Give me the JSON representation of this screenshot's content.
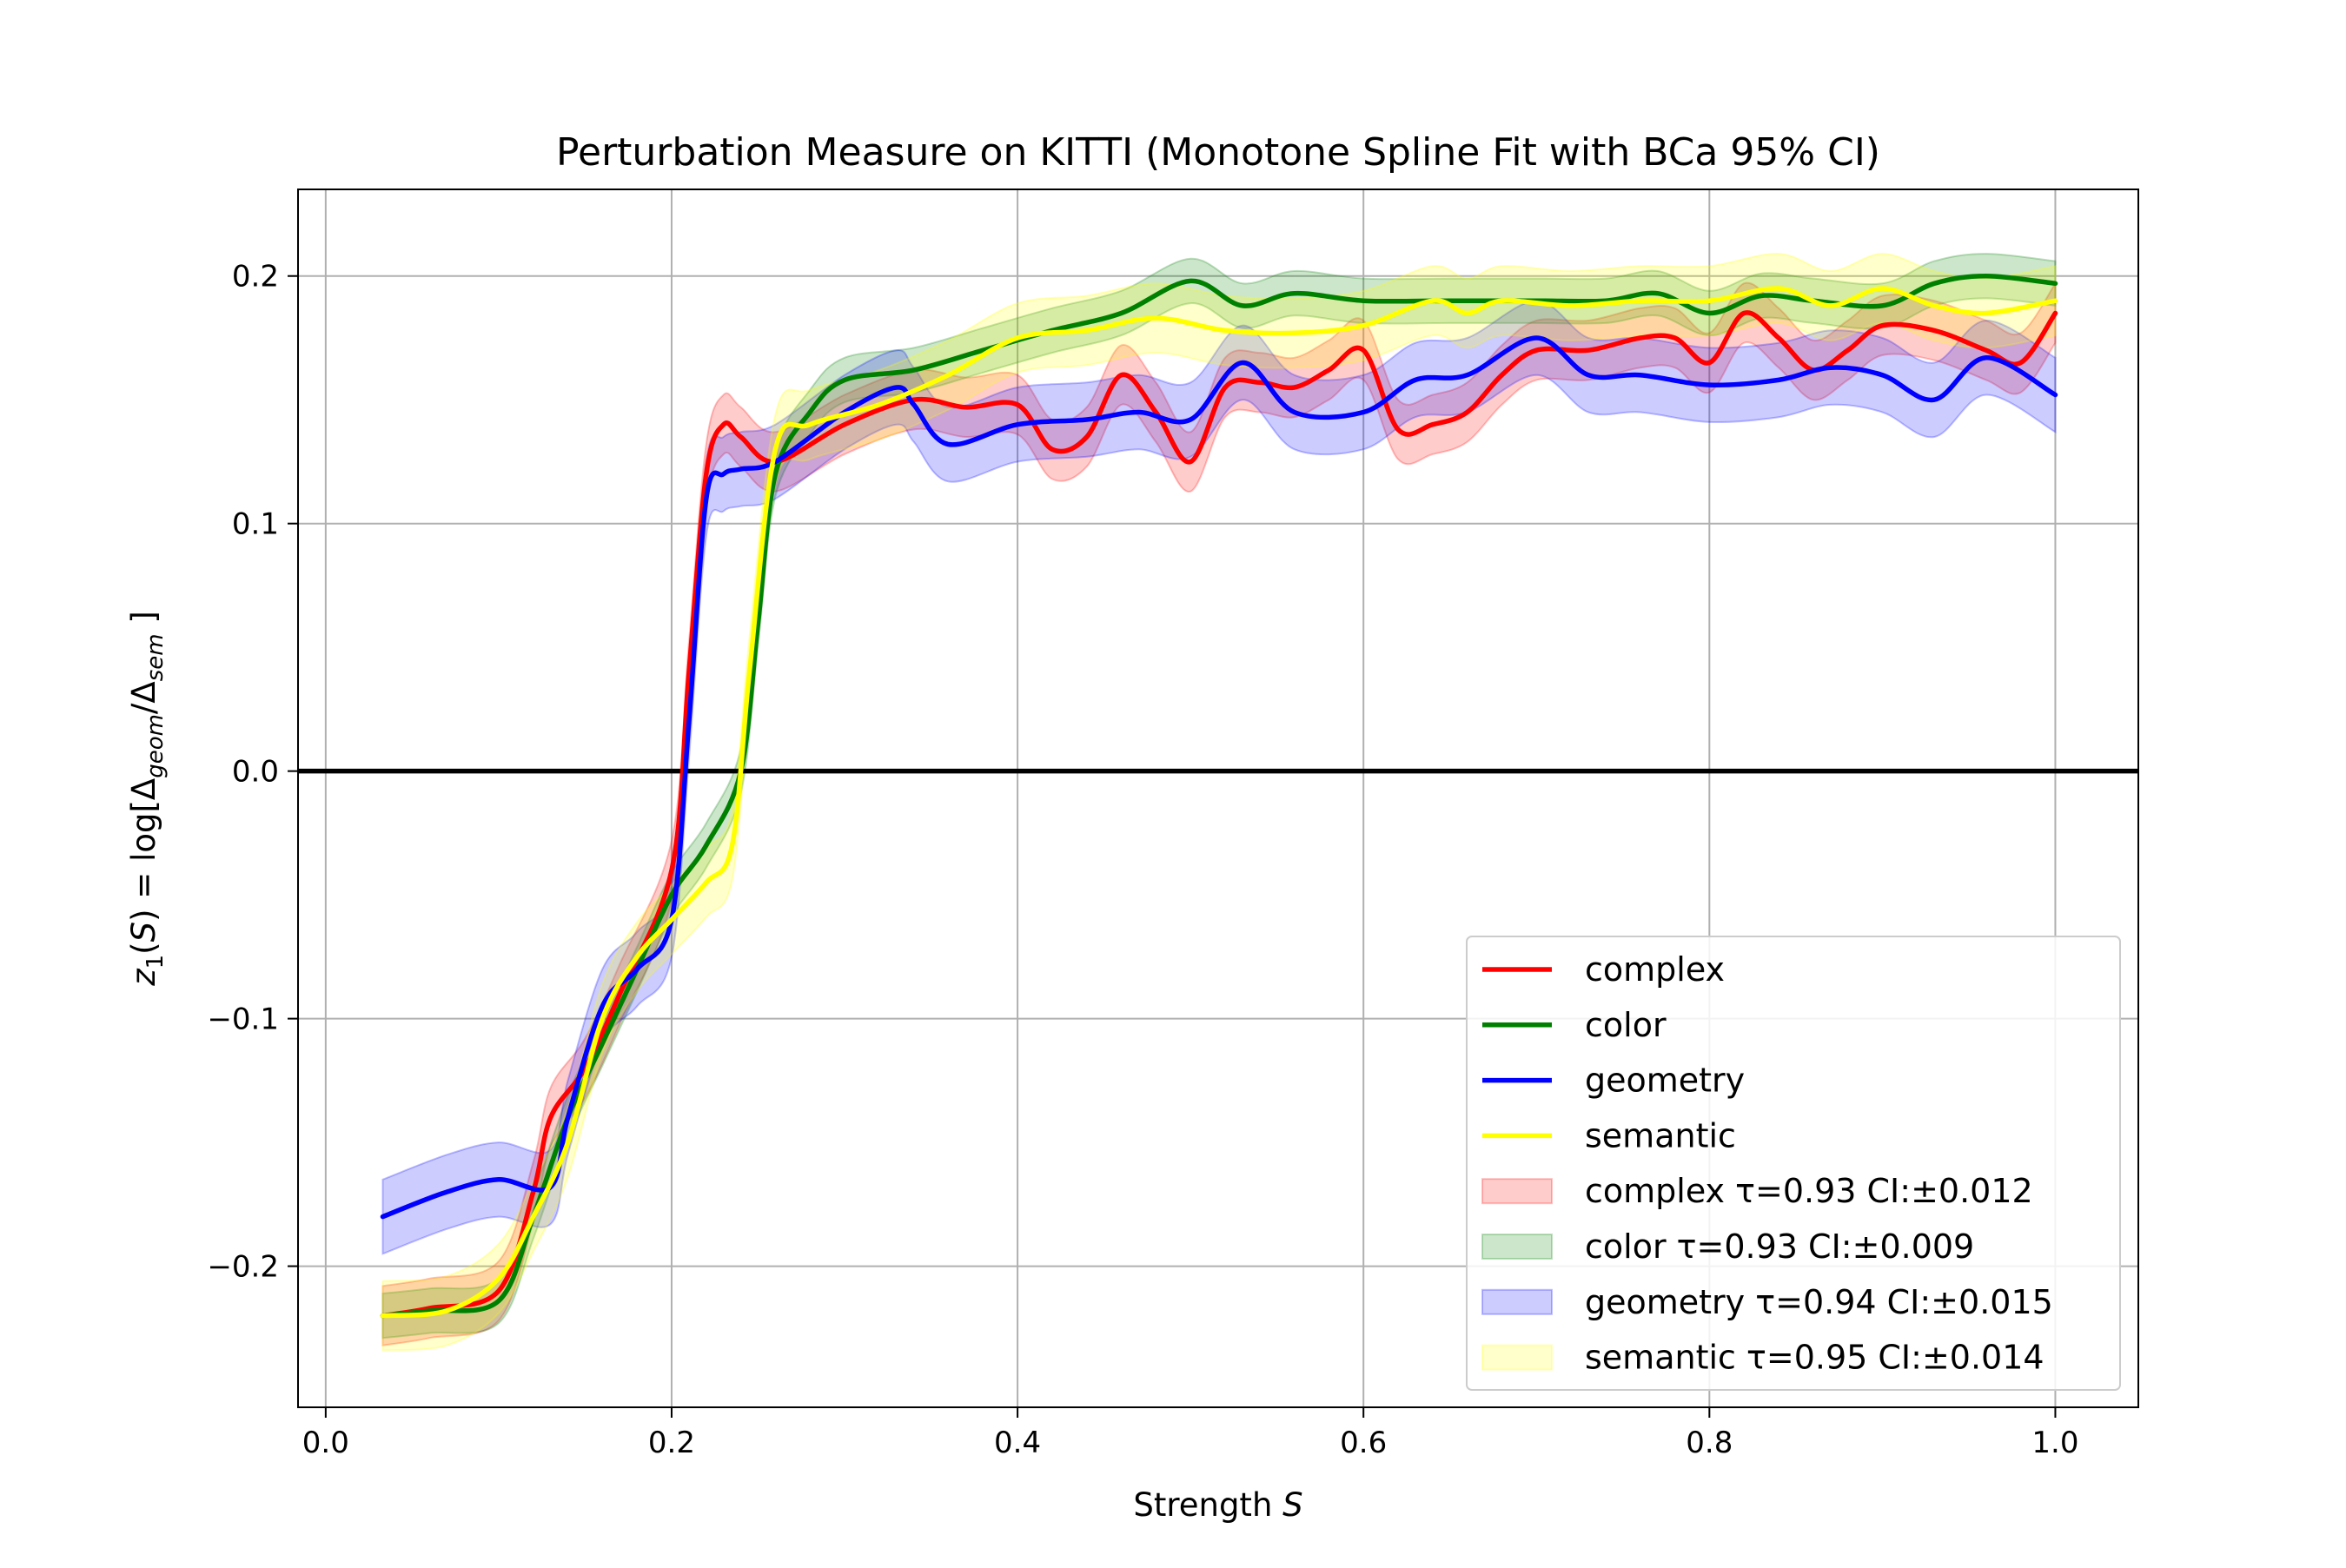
{
  "chart_data": {
    "type": "line",
    "title": "Perturbation Measure on KITTI (Monotone Spline Fit with BCa 95% CI)",
    "xlabel": "Strength S",
    "ylabel": "z1(S) = log[Δgeom/Δsem]",
    "xlim": [
      -0.016,
      1.048
    ],
    "ylim": [
      -0.257,
      0.235
    ],
    "xticks": [
      0.0,
      0.2,
      0.4,
      0.6,
      0.8,
      1.0
    ],
    "xtick_labels": [
      "0.0",
      "0.2",
      "0.4",
      "0.6",
      "0.8",
      "1.0"
    ],
    "yticks": [
      -0.2,
      -0.1,
      0.0,
      0.1,
      0.2
    ],
    "ytick_labels": [
      "−0.2",
      "−0.1",
      "0.0",
      "0.1",
      "0.2"
    ],
    "grid": true,
    "reference_line_y": 0.0,
    "legend_position": "lower right",
    "series": [
      {
        "name": "complex",
        "color": "#ff0000",
        "band_label": "complex τ=0.93 CI:±0.012",
        "ci": 0.012,
        "x": [
          0.033,
          0.06,
          0.1,
          0.12,
          0.13,
          0.15,
          0.17,
          0.2,
          0.21,
          0.22,
          0.23,
          0.24,
          0.26,
          0.3,
          0.34,
          0.37,
          0.4,
          0.42,
          0.44,
          0.46,
          0.48,
          0.5,
          0.52,
          0.54,
          0.56,
          0.58,
          0.6,
          0.62,
          0.64,
          0.66,
          0.68,
          0.7,
          0.73,
          0.76,
          0.78,
          0.8,
          0.82,
          0.84,
          0.86,
          0.88,
          0.9,
          0.93,
          0.96,
          0.98,
          1.0
        ],
        "y": [
          -0.22,
          -0.217,
          -0.21,
          -0.17,
          -0.14,
          -0.12,
          -0.09,
          -0.04,
          0.04,
          0.12,
          0.14,
          0.135,
          0.125,
          0.14,
          0.15,
          0.147,
          0.148,
          0.13,
          0.135,
          0.16,
          0.145,
          0.125,
          0.155,
          0.157,
          0.155,
          0.162,
          0.17,
          0.138,
          0.14,
          0.145,
          0.16,
          0.17,
          0.17,
          0.175,
          0.175,
          0.165,
          0.185,
          0.175,
          0.162,
          0.17,
          0.18,
          0.178,
          0.17,
          0.165,
          0.185
        ]
      },
      {
        "name": "color",
        "color": "#008000",
        "band_label": "color τ=0.93 CI:±0.009",
        "ci": 0.009,
        "x": [
          0.033,
          0.06,
          0.1,
          0.12,
          0.14,
          0.16,
          0.18,
          0.2,
          0.22,
          0.24,
          0.25,
          0.26,
          0.28,
          0.3,
          0.34,
          0.38,
          0.42,
          0.46,
          0.5,
          0.53,
          0.56,
          0.6,
          0.65,
          0.7,
          0.74,
          0.77,
          0.8,
          0.83,
          0.86,
          0.9,
          0.93,
          0.96,
          1.0
        ],
        "y": [
          -0.22,
          -0.218,
          -0.214,
          -0.18,
          -0.14,
          -0.11,
          -0.08,
          -0.05,
          -0.03,
          0.0,
          0.06,
          0.12,
          0.145,
          0.158,
          0.162,
          0.17,
          0.178,
          0.185,
          0.198,
          0.188,
          0.193,
          0.19,
          0.19,
          0.19,
          0.19,
          0.193,
          0.185,
          0.192,
          0.19,
          0.188,
          0.197,
          0.2,
          0.197
        ]
      },
      {
        "name": "geometry",
        "color": "#0000ff",
        "band_label": "geometry τ=0.94 CI:±0.015",
        "ci": 0.015,
        "x": [
          0.033,
          0.07,
          0.1,
          0.13,
          0.14,
          0.16,
          0.18,
          0.2,
          0.21,
          0.22,
          0.23,
          0.24,
          0.26,
          0.3,
          0.33,
          0.34,
          0.36,
          0.4,
          0.44,
          0.47,
          0.5,
          0.53,
          0.56,
          0.6,
          0.63,
          0.66,
          0.7,
          0.73,
          0.76,
          0.8,
          0.84,
          0.87,
          0.9,
          0.93,
          0.96,
          1.0
        ],
        "y": [
          -0.18,
          -0.17,
          -0.165,
          -0.168,
          -0.14,
          -0.095,
          -0.08,
          -0.06,
          0.02,
          0.11,
          0.12,
          0.122,
          0.125,
          0.145,
          0.155,
          0.148,
          0.132,
          0.14,
          0.142,
          0.145,
          0.142,
          0.165,
          0.145,
          0.145,
          0.158,
          0.16,
          0.175,
          0.16,
          0.16,
          0.156,
          0.158,
          0.163,
          0.16,
          0.15,
          0.167,
          0.152
        ]
      },
      {
        "name": "semantic",
        "color": "#ffff00",
        "band_label": "semantic τ=0.95 CI:±0.014",
        "ci": 0.014,
        "x": [
          0.033,
          0.07,
          0.1,
          0.12,
          0.14,
          0.16,
          0.18,
          0.2,
          0.22,
          0.235,
          0.245,
          0.26,
          0.28,
          0.32,
          0.36,
          0.4,
          0.44,
          0.48,
          0.52,
          0.56,
          0.6,
          0.64,
          0.66,
          0.68,
          0.72,
          0.76,
          0.8,
          0.84,
          0.87,
          0.9,
          0.93,
          0.96,
          1.0
        ],
        "y": [
          -0.22,
          -0.218,
          -0.205,
          -0.18,
          -0.15,
          -0.1,
          -0.075,
          -0.06,
          -0.045,
          -0.03,
          0.04,
          0.13,
          0.14,
          0.148,
          0.16,
          0.175,
          0.178,
          0.183,
          0.178,
          0.177,
          0.18,
          0.19,
          0.185,
          0.19,
          0.188,
          0.19,
          0.19,
          0.195,
          0.188,
          0.195,
          0.188,
          0.185,
          0.19
        ]
      }
    ]
  }
}
